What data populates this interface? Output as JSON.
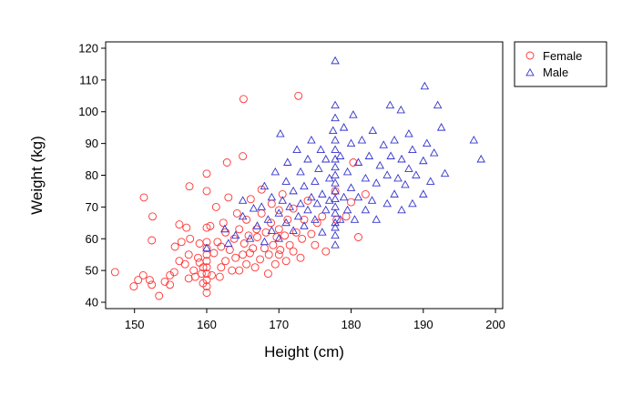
{
  "chart_data": {
    "type": "scatter",
    "xlabel": "Height (cm)",
    "ylabel": "Weight (kg)",
    "xlim": [
      146,
      201
    ],
    "ylim": [
      38,
      122
    ],
    "xticks": [
      150,
      160,
      170,
      180,
      190,
      200
    ],
    "yticks": [
      40,
      50,
      60,
      70,
      80,
      90,
      100,
      110,
      120
    ],
    "grid": false,
    "legend_position": "top-right, outside plot area",
    "series": [
      {
        "name": "Female",
        "marker": "circle",
        "color": "#ff3333",
        "points": [
          [
            147.3,
            49.5
          ],
          [
            149.9,
            45
          ],
          [
            150.5,
            47
          ],
          [
            151.2,
            48.5
          ],
          [
            151.3,
            73
          ],
          [
            152.1,
            47
          ],
          [
            152.4,
            45.5
          ],
          [
            152.4,
            59.5
          ],
          [
            152.5,
            67
          ],
          [
            153.4,
            42
          ],
          [
            154.2,
            46.5
          ],
          [
            154.9,
            45.5
          ],
          [
            154.9,
            48.5
          ],
          [
            155.5,
            49.5
          ],
          [
            155.6,
            57.5
          ],
          [
            156.2,
            53
          ],
          [
            156.2,
            64.5
          ],
          [
            156.5,
            59
          ],
          [
            157,
            52
          ],
          [
            157.2,
            63.5
          ],
          [
            157.5,
            47.5
          ],
          [
            157.5,
            55
          ],
          [
            157.6,
            76.5
          ],
          [
            157.7,
            60
          ],
          [
            158.2,
            50
          ],
          [
            158.4,
            48
          ],
          [
            158.8,
            54
          ],
          [
            159,
            52.5
          ],
          [
            159,
            58.5
          ],
          [
            159.3,
            49
          ],
          [
            159.5,
            46
          ],
          [
            159.5,
            51
          ],
          [
            160,
            43
          ],
          [
            160,
            45
          ],
          [
            160,
            47
          ],
          [
            160,
            49
          ],
          [
            160,
            51
          ],
          [
            160,
            53
          ],
          [
            160,
            55
          ],
          [
            160,
            57
          ],
          [
            160,
            59
          ],
          [
            160,
            63.5
          ],
          [
            160,
            75
          ],
          [
            160,
            80.5
          ],
          [
            160.5,
            64
          ],
          [
            160.7,
            48.5
          ],
          [
            161,
            55.5
          ],
          [
            161.3,
            70
          ],
          [
            161.5,
            59
          ],
          [
            161.8,
            48
          ],
          [
            162,
            51
          ],
          [
            162,
            57.5
          ],
          [
            162.3,
            65
          ],
          [
            162.6,
            53
          ],
          [
            162.6,
            62
          ],
          [
            162.8,
            84
          ],
          [
            163,
            73
          ],
          [
            163.2,
            56.5
          ],
          [
            163.5,
            50
          ],
          [
            163.8,
            60
          ],
          [
            164,
            54
          ],
          [
            164.2,
            68
          ],
          [
            164.5,
            50
          ],
          [
            164.5,
            63
          ],
          [
            165,
            55
          ],
          [
            165,
            86
          ],
          [
            165.1,
            104
          ],
          [
            165.2,
            58.5
          ],
          [
            165.5,
            52
          ],
          [
            165.5,
            66
          ],
          [
            165.8,
            61
          ],
          [
            166,
            55.5
          ],
          [
            166.1,
            72.5
          ],
          [
            166.4,
            57
          ],
          [
            166.7,
            51
          ],
          [
            166.9,
            63
          ],
          [
            167,
            60.5
          ],
          [
            167.4,
            53.5
          ],
          [
            167.6,
            68
          ],
          [
            167.6,
            75.5
          ],
          [
            168,
            57
          ],
          [
            168.2,
            62
          ],
          [
            168.5,
            49
          ],
          [
            168.6,
            55
          ],
          [
            168.9,
            65
          ],
          [
            169,
            71
          ],
          [
            169.2,
            58
          ],
          [
            169.5,
            52
          ],
          [
            169.7,
            60.5
          ],
          [
            170,
            55
          ],
          [
            170,
            63
          ],
          [
            170,
            69
          ],
          [
            170.2,
            56.5
          ],
          [
            170.5,
            74
          ],
          [
            170.8,
            61
          ],
          [
            171,
            53
          ],
          [
            171.2,
            66
          ],
          [
            171.5,
            58
          ],
          [
            172,
            56
          ],
          [
            172,
            69.5
          ],
          [
            172.4,
            62
          ],
          [
            172.7,
            105
          ],
          [
            173,
            54
          ],
          [
            173.2,
            60
          ],
          [
            173.5,
            66
          ],
          [
            174,
            72
          ],
          [
            174.5,
            61.5
          ],
          [
            175,
            58
          ],
          [
            175.3,
            65
          ],
          [
            176,
            67
          ],
          [
            176.5,
            56
          ],
          [
            177.8,
            75
          ],
          [
            178,
            66
          ],
          [
            179.3,
            67
          ],
          [
            180,
            71.5
          ],
          [
            180.3,
            84
          ],
          [
            181,
            60.5
          ],
          [
            182,
            74
          ]
        ]
      },
      {
        "name": "Male",
        "marker": "triangle",
        "color": "#3333cc",
        "points": [
          [
            160,
            57
          ],
          [
            162.5,
            63
          ],
          [
            163,
            58.5
          ],
          [
            164,
            61
          ],
          [
            165,
            67
          ],
          [
            165,
            72
          ],
          [
            166,
            60
          ],
          [
            166.5,
            69.5
          ],
          [
            167,
            64
          ],
          [
            167.6,
            70
          ],
          [
            168,
            59
          ],
          [
            168,
            76.5
          ],
          [
            168.5,
            66
          ],
          [
            169,
            62.5
          ],
          [
            169,
            73
          ],
          [
            169.5,
            81
          ],
          [
            170,
            60
          ],
          [
            170,
            68
          ],
          [
            170.2,
            93
          ],
          [
            170.5,
            72
          ],
          [
            171,
            65
          ],
          [
            171,
            78
          ],
          [
            171.2,
            84
          ],
          [
            171.5,
            70
          ],
          [
            172,
            62.5
          ],
          [
            172,
            75
          ],
          [
            172.5,
            88
          ],
          [
            172.7,
            67
          ],
          [
            173,
            71
          ],
          [
            173,
            81
          ],
          [
            173.5,
            64
          ],
          [
            173.5,
            76.5
          ],
          [
            174,
            69
          ],
          [
            174,
            85
          ],
          [
            174.5,
            73
          ],
          [
            174.5,
            91
          ],
          [
            175,
            66
          ],
          [
            175,
            78
          ],
          [
            175.3,
            71
          ],
          [
            175.5,
            82
          ],
          [
            175.8,
            88
          ],
          [
            176,
            62
          ],
          [
            176,
            74
          ],
          [
            176.5,
            69
          ],
          [
            176.5,
            85
          ],
          [
            177,
            72
          ],
          [
            177,
            79
          ],
          [
            177.5,
            94
          ],
          [
            177.8,
            58
          ],
          [
            177.8,
            61
          ],
          [
            177.8,
            63.5
          ],
          [
            177.8,
            65
          ],
          [
            177.8,
            68
          ],
          [
            177.8,
            70
          ],
          [
            177.8,
            72.5
          ],
          [
            177.8,
            75
          ],
          [
            177.8,
            77.5
          ],
          [
            177.8,
            80
          ],
          [
            177.8,
            82.5
          ],
          [
            177.8,
            85
          ],
          [
            177.8,
            88
          ],
          [
            177.8,
            91
          ],
          [
            177.8,
            98
          ],
          [
            177.8,
            102
          ],
          [
            177.8,
            116
          ],
          [
            178.5,
            66
          ],
          [
            178.5,
            86
          ],
          [
            179,
            73
          ],
          [
            179,
            95
          ],
          [
            179.5,
            69
          ],
          [
            179.5,
            81
          ],
          [
            180,
            76
          ],
          [
            180,
            90
          ],
          [
            180.3,
            99
          ],
          [
            180.5,
            66
          ],
          [
            181,
            73
          ],
          [
            181,
            84
          ],
          [
            181.5,
            91
          ],
          [
            182,
            69
          ],
          [
            182,
            79
          ],
          [
            182.5,
            86
          ],
          [
            182.9,
            72
          ],
          [
            183,
            94
          ],
          [
            183.5,
            66
          ],
          [
            183.5,
            77.5
          ],
          [
            184,
            83
          ],
          [
            184.5,
            89.5
          ],
          [
            185,
            71
          ],
          [
            185,
            80
          ],
          [
            185.4,
            102
          ],
          [
            185.5,
            86
          ],
          [
            186,
            74
          ],
          [
            186,
            91
          ],
          [
            186.5,
            79
          ],
          [
            186.9,
            100.5
          ],
          [
            187,
            69
          ],
          [
            187,
            85
          ],
          [
            187.5,
            77
          ],
          [
            188,
            82
          ],
          [
            188,
            93
          ],
          [
            188.5,
            71
          ],
          [
            188.5,
            88
          ],
          [
            189,
            80
          ],
          [
            190,
            74
          ],
          [
            190,
            84.5
          ],
          [
            190.2,
            108
          ],
          [
            190.5,
            90
          ],
          [
            191,
            78
          ],
          [
            191.5,
            87
          ],
          [
            192,
            102
          ],
          [
            192.5,
            95
          ],
          [
            193,
            80.5
          ],
          [
            197,
            91
          ],
          [
            198,
            85
          ]
        ]
      }
    ]
  }
}
